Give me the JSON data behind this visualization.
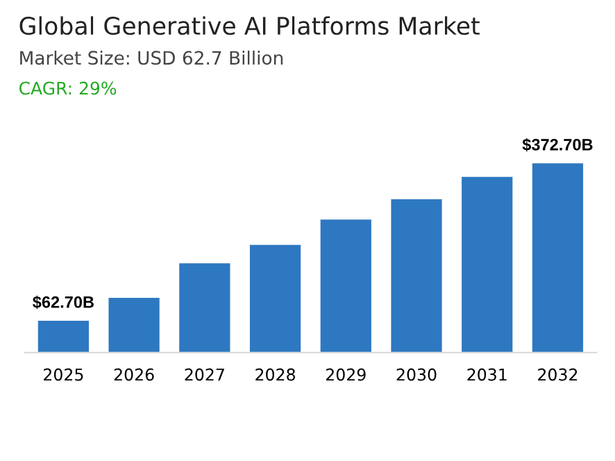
{
  "chart_data": {
    "type": "bar",
    "title": "Global Generative AI Platforms Market",
    "subtitle": "Market Size: USD 62.7 Billion",
    "annotations": [
      "CAGR: 29%"
    ],
    "categories": [
      "2025",
      "2026",
      "2027",
      "2028",
      "2029",
      "2030",
      "2031",
      "2032"
    ],
    "values": [
      62.7,
      108,
      176,
      212,
      262,
      302,
      346,
      372.7
    ],
    "value_labels": [
      "$62.70B",
      null,
      null,
      null,
      null,
      null,
      null,
      "$372.70B"
    ],
    "color": "#2e78c1",
    "grid": false,
    "legend": false,
    "tick_labels": "x"
  }
}
